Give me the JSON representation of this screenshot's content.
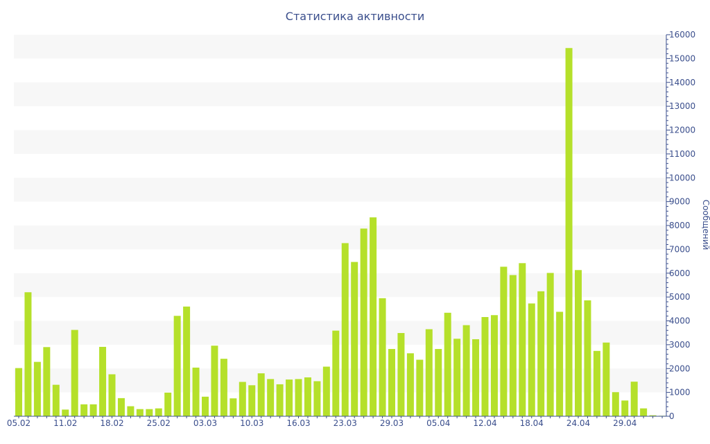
{
  "chart_data": {
    "type": "bar",
    "title": "Статистика активности",
    "xlabel": "",
    "ylabel": "Сообщений",
    "ylim": [
      0,
      16000
    ],
    "yticks": [
      0,
      1000,
      2000,
      3000,
      4000,
      5000,
      6000,
      7000,
      8000,
      9000,
      10000,
      11000,
      12000,
      13000,
      14000,
      15000,
      16000
    ],
    "y_axis_side": "right",
    "grid": "alternating horizontal bands",
    "bar_color": "#b5e02a",
    "band_color": "#f7f7f7",
    "text_color": "#3a4e8c",
    "x_tick_labels": [
      {
        "index": 0,
        "label": "05.02"
      },
      {
        "index": 5,
        "label": "11.02"
      },
      {
        "index": 10,
        "label": "18.02"
      },
      {
        "index": 15,
        "label": "25.02"
      },
      {
        "index": 20,
        "label": "03.03"
      },
      {
        "index": 25,
        "label": "10.03"
      },
      {
        "index": 30,
        "label": "16.03"
      },
      {
        "index": 35,
        "label": "23.03"
      },
      {
        "index": 40,
        "label": "29.03"
      },
      {
        "index": 45,
        "label": "05.04"
      },
      {
        "index": 50,
        "label": "12.04"
      },
      {
        "index": 55,
        "label": "18.04"
      },
      {
        "index": 60,
        "label": "24.04"
      },
      {
        "index": 65,
        "label": "29.04"
      }
    ],
    "series": [
      {
        "values": [
          2020,
          5200,
          2280,
          2900,
          1320,
          280,
          3620,
          500,
          500,
          2910,
          1760,
          760,
          420,
          300,
          300,
          330,
          990,
          4210,
          4600,
          2040,
          820,
          2960,
          2410,
          750,
          1440,
          1300,
          1800,
          1560,
          1340,
          1540,
          1560,
          1630,
          1470,
          2080,
          3590,
          7260,
          6470,
          7870,
          8340,
          4950,
          2820,
          3490,
          2640,
          2370,
          3650,
          2820,
          4340,
          3250,
          3820,
          3230,
          4160,
          4240,
          6270,
          5920,
          6420,
          4730,
          5240,
          6010,
          4380,
          15440,
          6130,
          4860,
          2740,
          3090,
          1010,
          660,
          1450,
          330,
          40,
          20
        ]
      }
    ]
  }
}
